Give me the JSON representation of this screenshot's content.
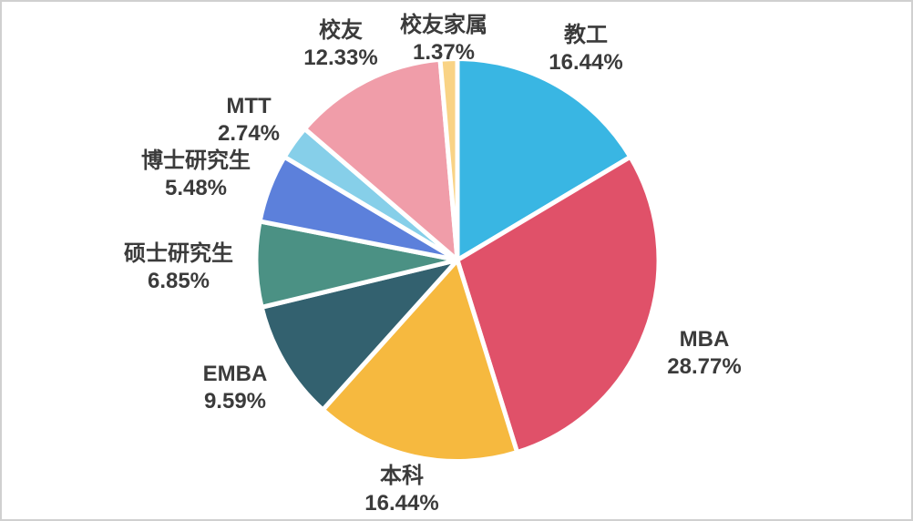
{
  "chart_data": {
    "type": "pie",
    "title": "",
    "direction": "clockwise",
    "start_angle_deg": 0,
    "labels_outside": true,
    "legend": "none",
    "separator_color": "#ffffff",
    "label_text_color": "#3b3b3b",
    "background_color": "#ffffff",
    "border_color": "#d0d0d0",
    "slices": [
      {
        "label": "教工",
        "value": 16.44,
        "display": "16.44%",
        "color": "#39b6e3"
      },
      {
        "label": "MBA",
        "value": 28.77,
        "display": "28.77%",
        "color": "#e05169"
      },
      {
        "label": "本科",
        "value": 16.44,
        "display": "16.44%",
        "color": "#f6b93f"
      },
      {
        "label": "EMBA",
        "value": 9.59,
        "display": "9.59%",
        "color": "#33616f"
      },
      {
        "label": "硕士研究生",
        "value": 6.85,
        "display": "6.85%",
        "color": "#4b9184"
      },
      {
        "label": "博士研究生",
        "value": 5.48,
        "display": "5.48%",
        "color": "#5c80db"
      },
      {
        "label": "MTT",
        "value": 2.74,
        "display": "2.74%",
        "color": "#86cfe9"
      },
      {
        "label": "校友",
        "value": 12.33,
        "display": "12.33%",
        "color": "#f09da9"
      },
      {
        "label": "校友家属",
        "value": 1.37,
        "display": "1.37%",
        "color": "#f9d385"
      }
    ]
  }
}
